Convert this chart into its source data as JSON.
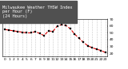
{
  "hours": [
    0,
    1,
    2,
    3,
    4,
    5,
    6,
    7,
    8,
    9,
    10,
    11,
    12,
    13,
    14,
    15,
    16,
    17,
    18,
    19,
    20,
    21,
    22,
    23
  ],
  "thsw": [
    55,
    54,
    53,
    52,
    51,
    50,
    50,
    52,
    49,
    46,
    53,
    52,
    60,
    62,
    61,
    56,
    48,
    42,
    36,
    31,
    28,
    26,
    24,
    21
  ],
  "line_color": "#dd0000",
  "marker_color": "#000000",
  "bg_color": "#ffffff",
  "title_line1": "Milwaukee Weather THSW Index",
  "title_line2": "per Hour (F)",
  "title_line3": "(24 Hours)",
  "title_fontsize": 3.8,
  "title_bg": "#505050",
  "title_text_color": "#ffffff",
  "ylim": [
    15,
    70
  ],
  "xlim": [
    -0.5,
    23.5
  ],
  "ytick_values": [
    20,
    30,
    40,
    50,
    60,
    70
  ],
  "ytick_labels": [
    "20",
    "30",
    "40",
    "50",
    "60",
    "70"
  ],
  "xticks": [
    0,
    1,
    2,
    3,
    4,
    5,
    6,
    7,
    8,
    9,
    10,
    11,
    12,
    13,
    14,
    15,
    16,
    17,
    18,
    19,
    20,
    21,
    22,
    23
  ],
  "grid_color": "#999999",
  "axis_color": "#000000",
  "tick_fontsize": 3.2,
  "linewidth": 0.8,
  "markersize": 1.8
}
